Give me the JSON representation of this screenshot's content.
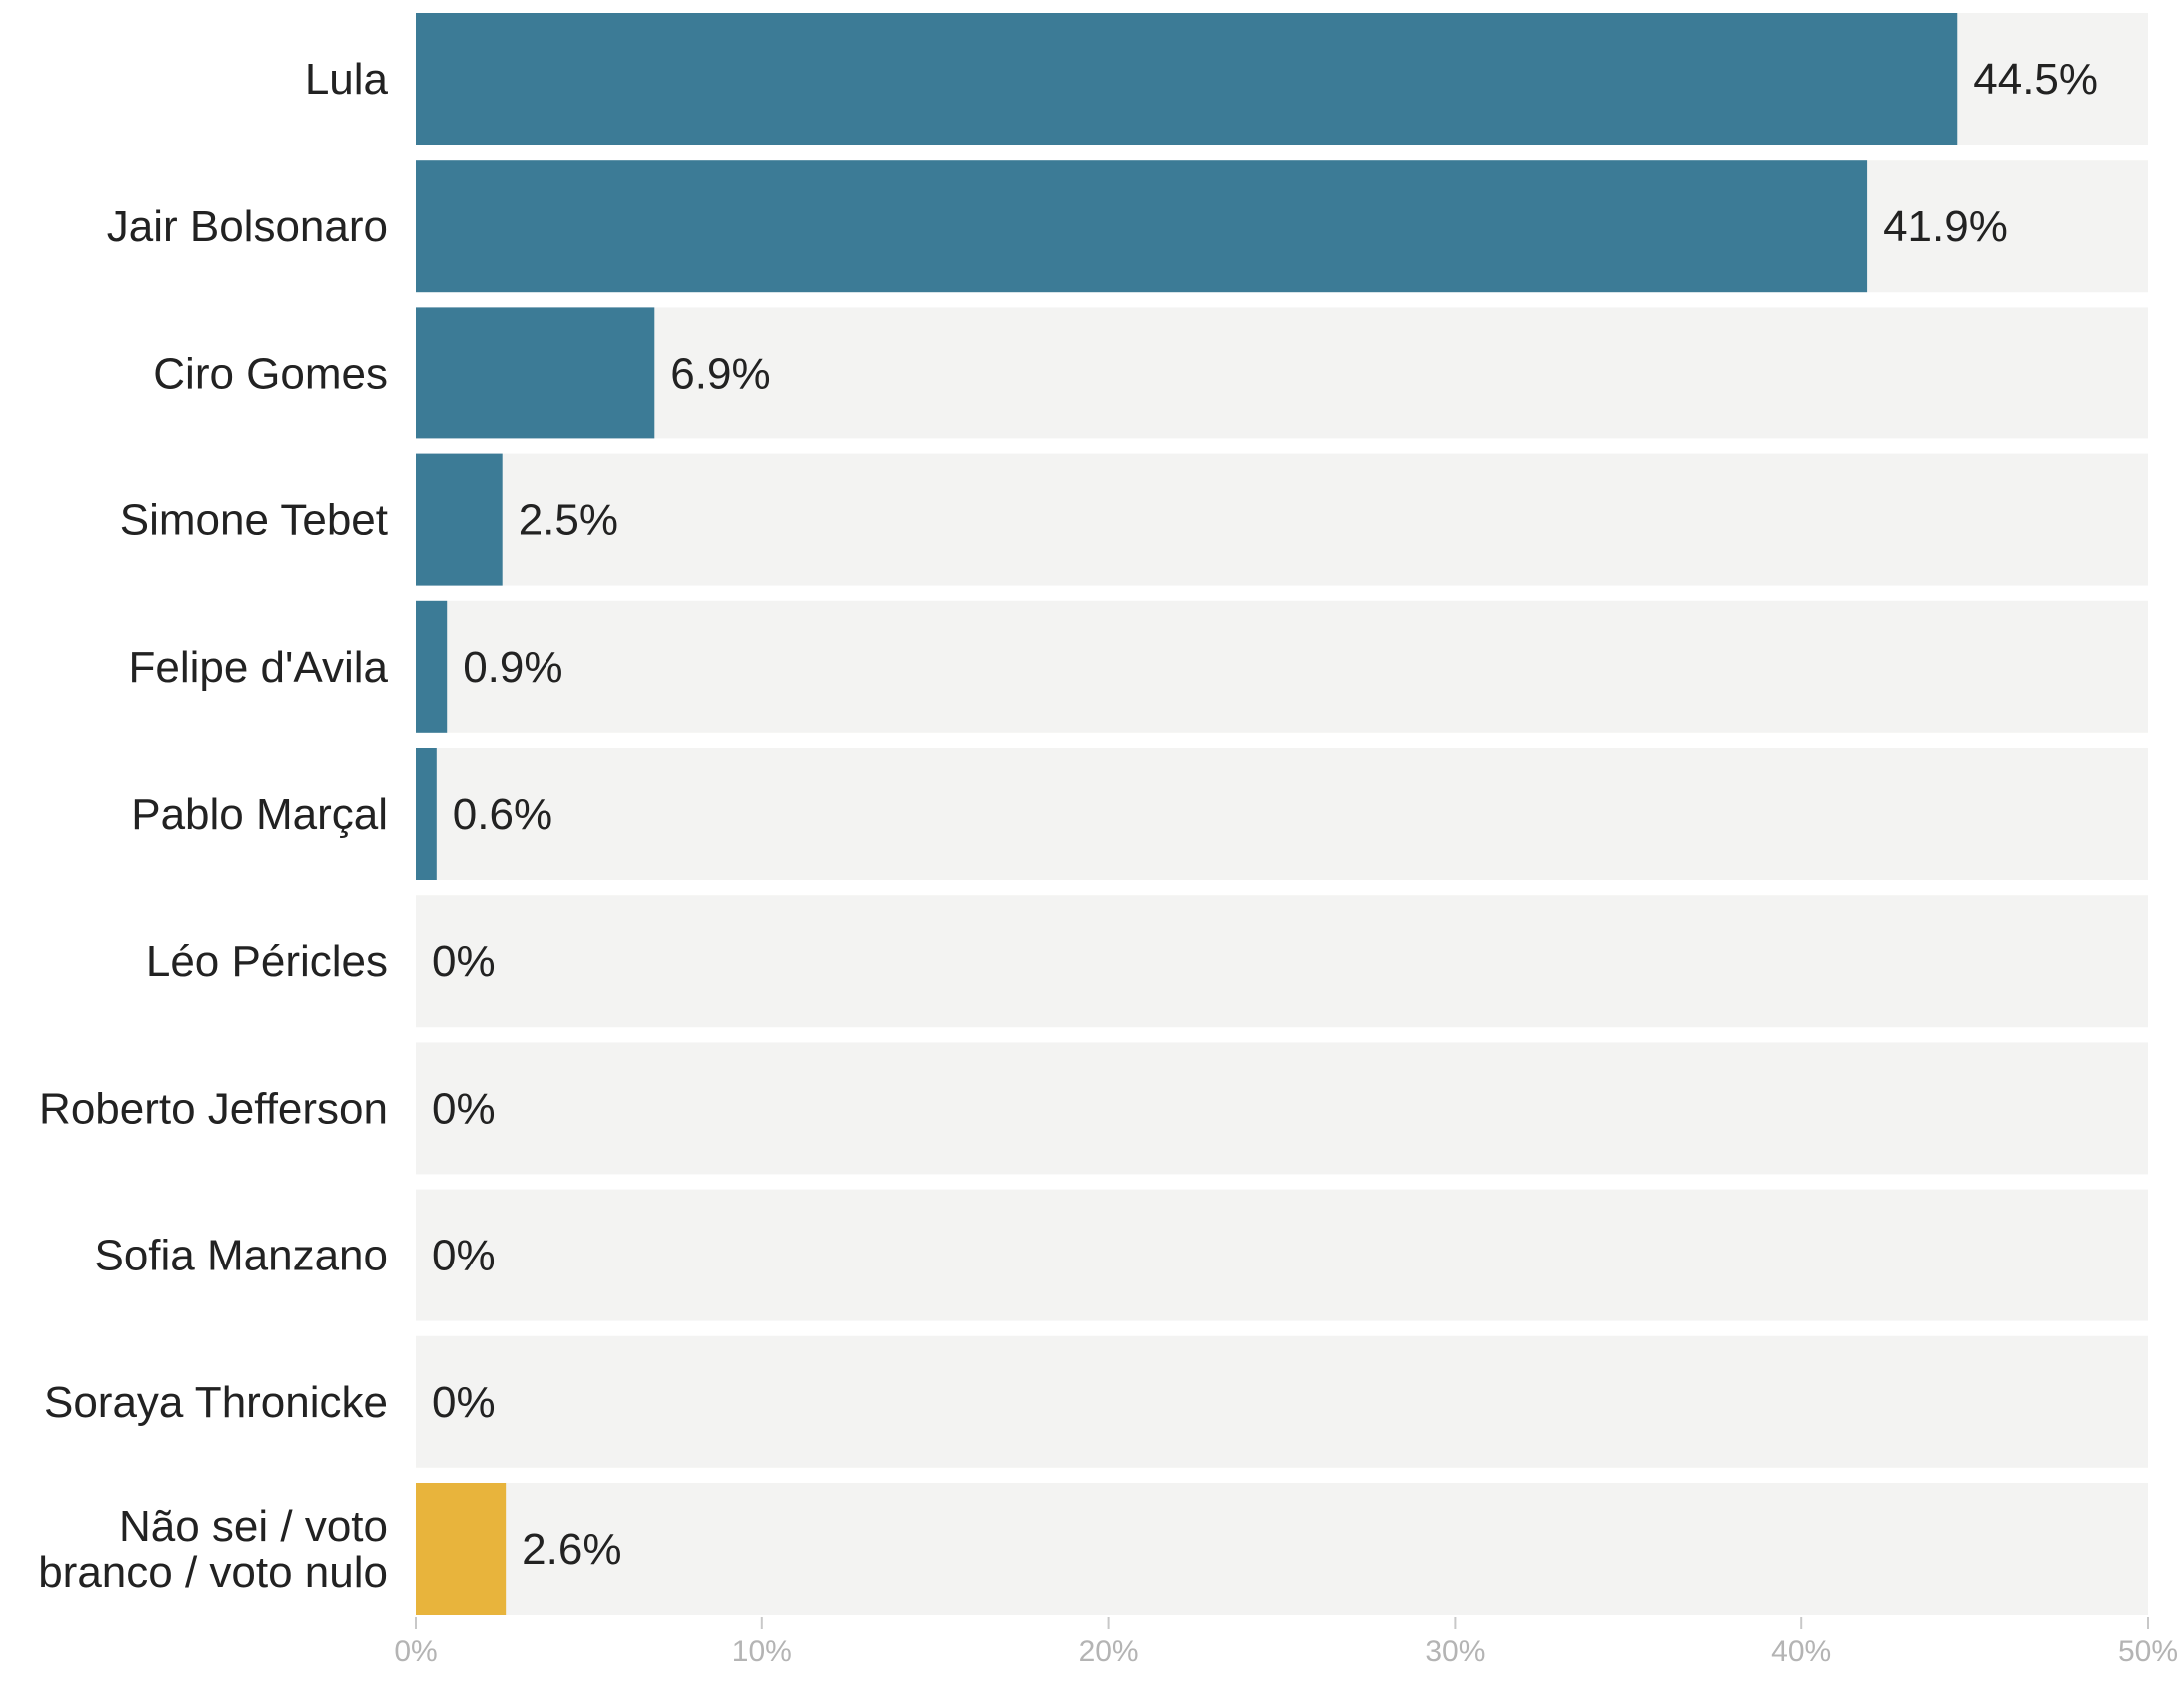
{
  "chart_data": {
    "type": "bar",
    "orientation": "horizontal",
    "title": "",
    "xlabel": "",
    "ylabel": "",
    "categories": [
      "Lula",
      "Jair Bolsonaro",
      "Ciro Gomes",
      "Simone Tebet",
      "Felipe d'Avila",
      "Pablo Marçal",
      "Léo Péricles",
      "Roberto Jefferson",
      "Sofia Manzano",
      "Soraya Thronicke",
      "Não sei / voto branco / voto nulo"
    ],
    "values": [
      44.5,
      41.9,
      6.9,
      2.5,
      0.9,
      0.6,
      0,
      0,
      0,
      0,
      2.6
    ],
    "value_labels": [
      "44.5%",
      "41.9%",
      "6.9%",
      "2.5%",
      "0.9%",
      "0.6%",
      "0%",
      "0%",
      "0%",
      "0%",
      "2.6%"
    ],
    "xlim": [
      0,
      50
    ],
    "x_ticks": [
      0,
      10,
      20,
      30,
      40,
      50
    ],
    "x_tick_labels": [
      "0%",
      "10%",
      "20%",
      "30%",
      "40%",
      "50%"
    ],
    "grid": false,
    "legend": "none",
    "colors": {
      "bar": "#3c7b96",
      "bar_highlight": "#e8b43c",
      "track": "#f3f3f2",
      "text": "#222222",
      "tick_text": "#b4b4b4"
    },
    "highlight_index": 10
  }
}
